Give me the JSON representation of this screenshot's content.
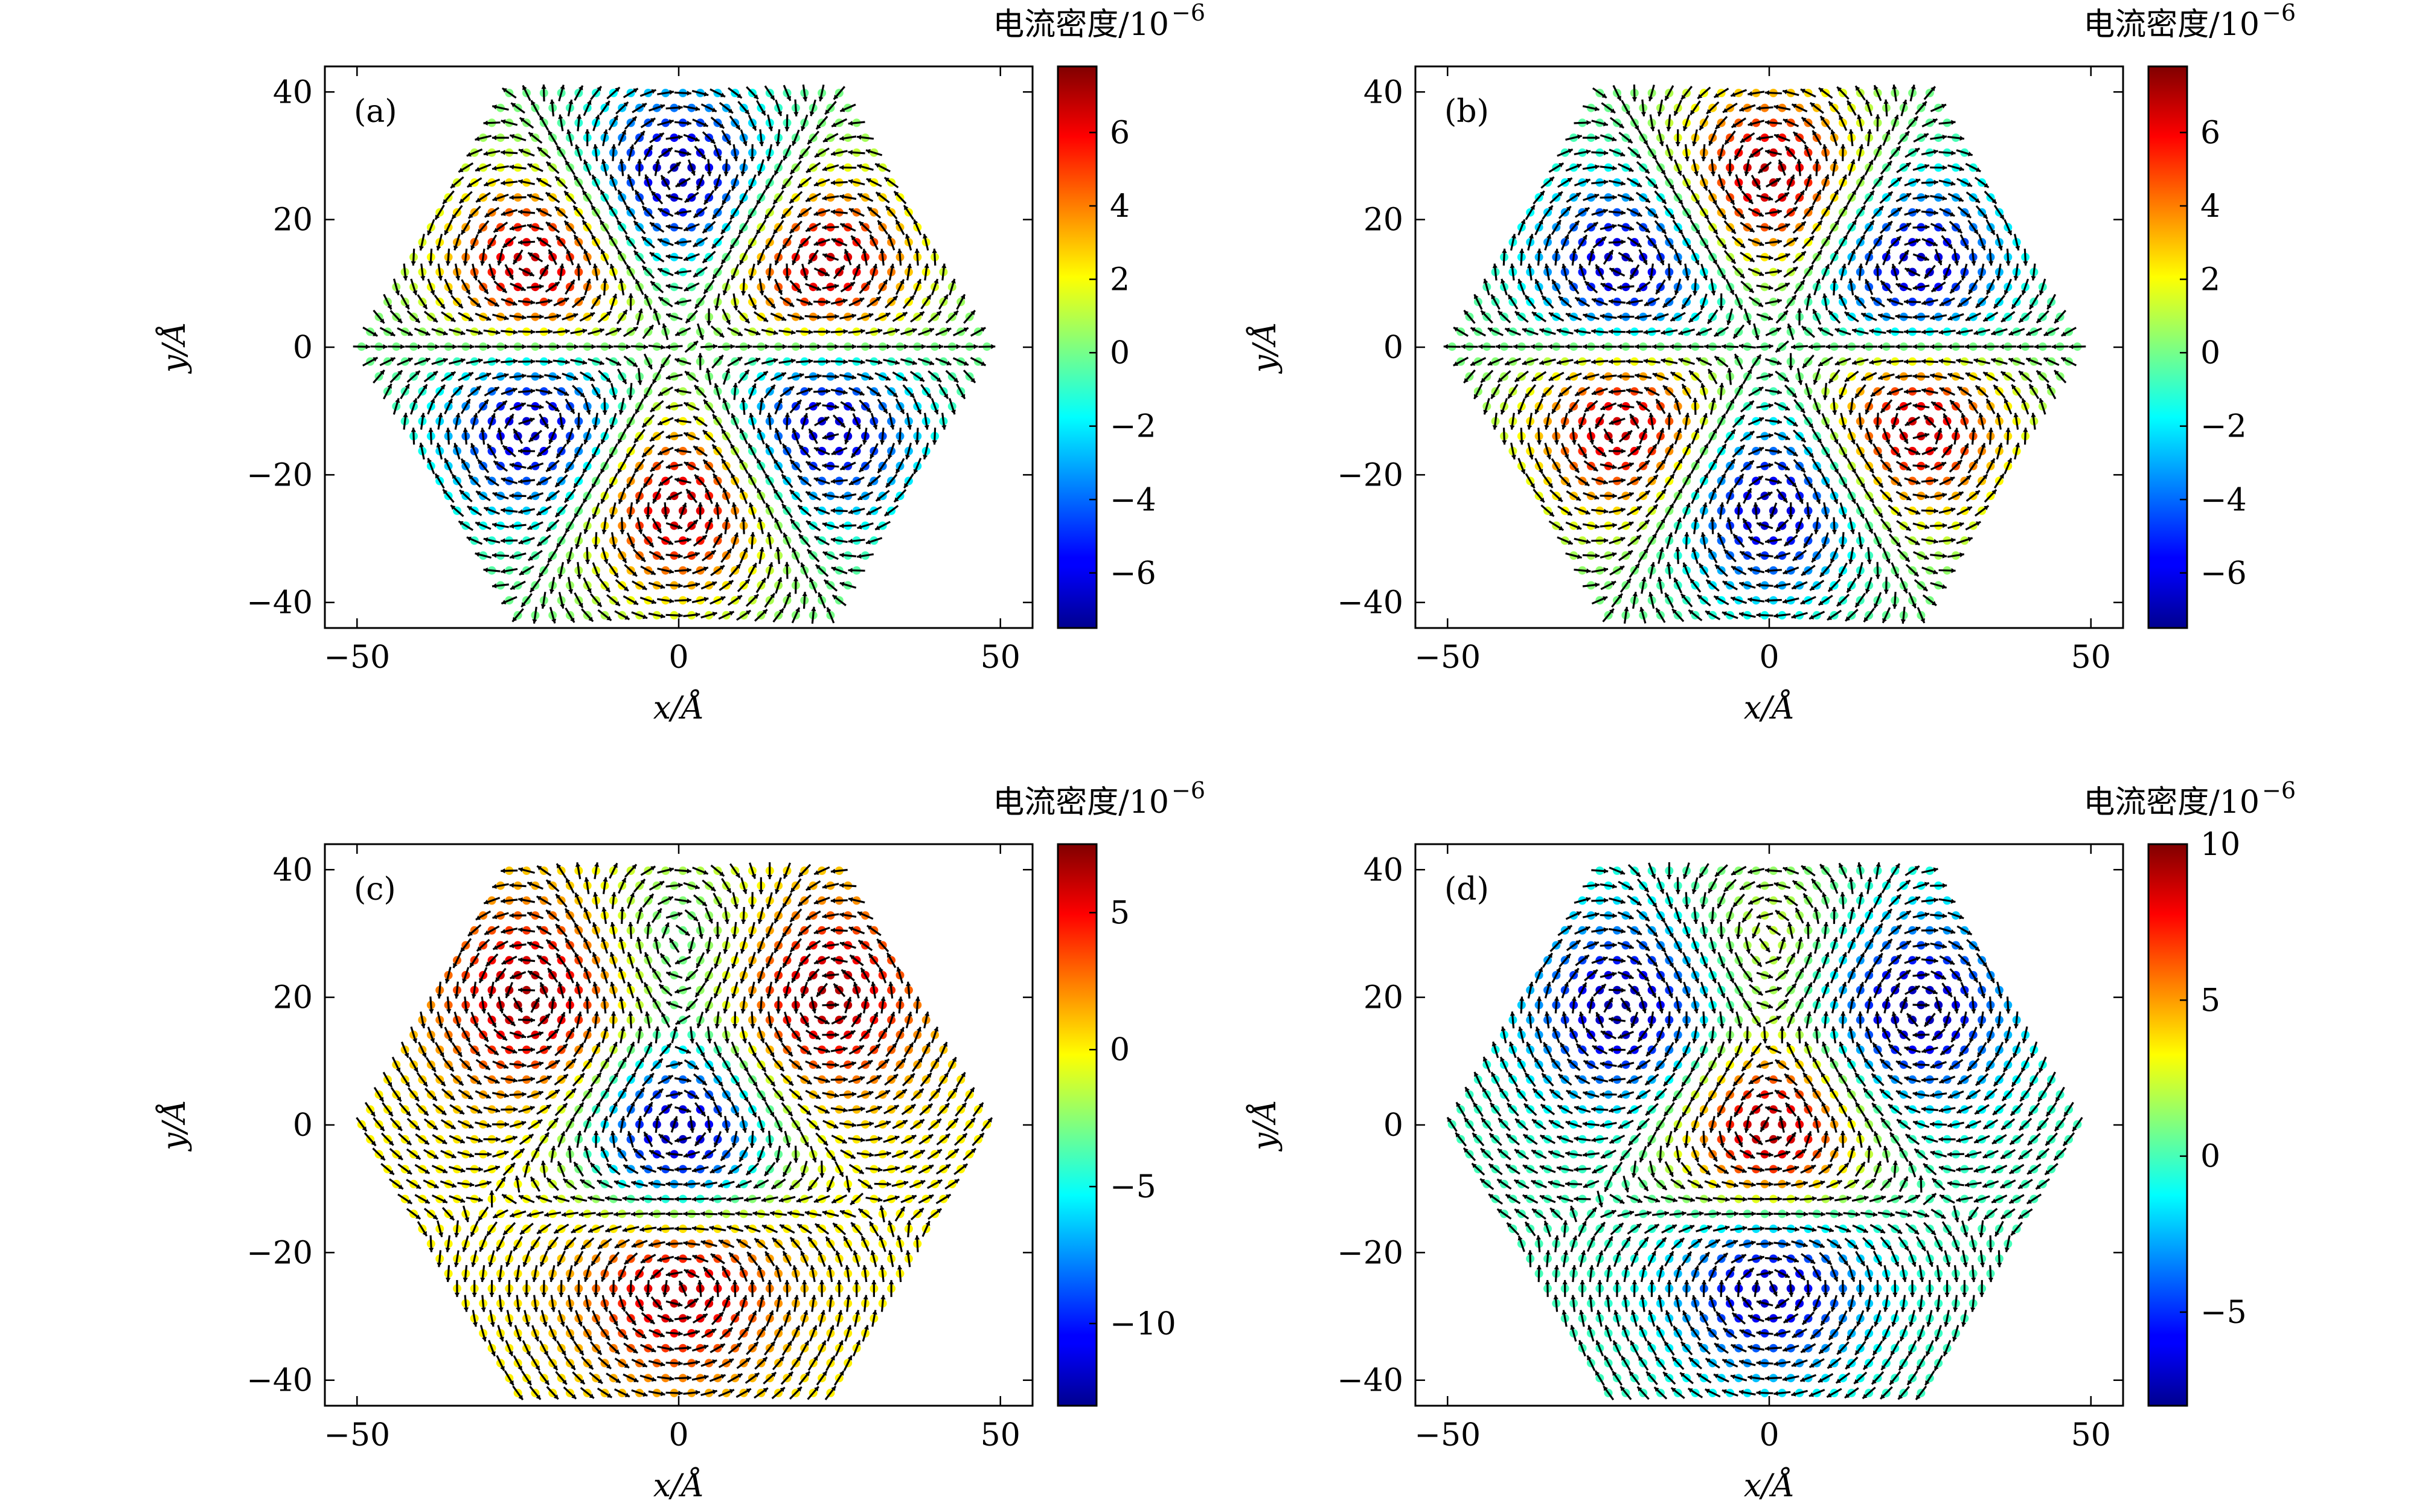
{
  "chart_data": [
    {
      "type": "quiver",
      "panel_label": "(a)",
      "xlabel": "x/Å",
      "ylabel": "y/Å",
      "xlim": [
        -55,
        55
      ],
      "ylim": [
        -44,
        44
      ],
      "xticks": [
        -50,
        0,
        50
      ],
      "yticks": [
        -40,
        -20,
        0,
        20,
        40
      ],
      "colorbar": {
        "title": "电流密度/10",
        "exponent": "−6",
        "range": [
          -7.5,
          7.8
        ],
        "ticks": [
          -6,
          -4,
          -2,
          0,
          2,
          4,
          6
        ]
      },
      "vortices": [
        {
          "x": 0,
          "y": 26,
          "value": -7.2
        },
        {
          "x": 0,
          "y": -24,
          "value": 7.5
        },
        {
          "x": -22,
          "y": 12,
          "value": 7.5
        },
        {
          "x": 22,
          "y": 12,
          "value": 7.5
        },
        {
          "x": -22,
          "y": -12,
          "value": -7.2
        },
        {
          "x": 22,
          "y": -12,
          "value": -7.2
        }
      ]
    },
    {
      "type": "quiver",
      "panel_label": "(b)",
      "xlabel": "x/Å",
      "ylabel": "y/Å",
      "xlim": [
        -55,
        55
      ],
      "ylim": [
        -44,
        44
      ],
      "xticks": [
        -50,
        0,
        50
      ],
      "yticks": [
        -40,
        -20,
        0,
        20,
        40
      ],
      "colorbar": {
        "title": "电流密度/10",
        "exponent": "−6",
        "range": [
          -7.5,
          7.8
        ],
        "ticks": [
          -6,
          -4,
          -2,
          0,
          2,
          4,
          6
        ]
      },
      "vortices": [
        {
          "x": 0,
          "y": 26,
          "value": 7.5
        },
        {
          "x": 0,
          "y": -24,
          "value": -7.2
        },
        {
          "x": -22,
          "y": 12,
          "value": -7.2
        },
        {
          "x": 22,
          "y": 12,
          "value": -7.2
        },
        {
          "x": -22,
          "y": -12,
          "value": 7.5
        },
        {
          "x": 22,
          "y": -12,
          "value": 7.5
        }
      ]
    },
    {
      "type": "quiver",
      "panel_label": "(c)",
      "xlabel": "x/Å",
      "ylabel": "y/Å",
      "xlim": [
        -55,
        55
      ],
      "ylim": [
        -44,
        44
      ],
      "xticks": [
        -50,
        0,
        50
      ],
      "yticks": [
        -40,
        -20,
        0,
        20,
        40
      ],
      "colorbar": {
        "title": "电流密度/10",
        "exponent": "−6",
        "range": [
          -13,
          7.5
        ],
        "ticks": [
          -10,
          -5,
          0,
          5
        ]
      },
      "vortices": [
        {
          "x": 0,
          "y": -2,
          "value": -12.5
        },
        {
          "x": 0,
          "y": -24,
          "value": 7.0
        },
        {
          "x": -22,
          "y": 20,
          "value": 7.0
        },
        {
          "x": 22,
          "y": 20,
          "value": 7.0
        },
        {
          "x": 0,
          "y": 28,
          "value": -4.0
        }
      ]
    },
    {
      "type": "quiver",
      "panel_label": "(d)",
      "xlabel": "x/Å",
      "ylabel": "y/Å",
      "xlim": [
        -55,
        55
      ],
      "ylim": [
        -44,
        44
      ],
      "xticks": [
        -50,
        0,
        50
      ],
      "yticks": [
        -40,
        -20,
        0,
        20,
        40
      ],
      "colorbar": {
        "title": "电流密度/10",
        "exponent": "−6",
        "range": [
          -8,
          10
        ],
        "ticks": [
          -5,
          0,
          5,
          10
        ]
      },
      "vortices": [
        {
          "x": 0,
          "y": -2,
          "value": 10
        },
        {
          "x": 0,
          "y": -24,
          "value": -7.5
        },
        {
          "x": -22,
          "y": 18,
          "value": -7.5
        },
        {
          "x": 22,
          "y": 18,
          "value": -7.5
        },
        {
          "x": 0,
          "y": 28,
          "value": 3.0
        }
      ]
    }
  ]
}
